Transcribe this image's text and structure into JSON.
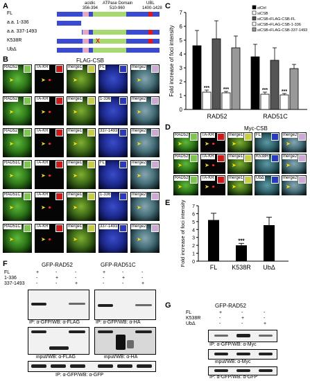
{
  "panels": {
    "A": "A",
    "B": "B",
    "C": "C",
    "D": "D",
    "E": "E",
    "F": "F",
    "G": "G"
  },
  "panel_a": {
    "header_acidic": "acidic",
    "header_acidic_range": "356-394",
    "header_atpase": "ATPase Domain",
    "header_atpase_range": "510-960",
    "header_ubl": "UBL",
    "header_ubl_range": "1400-1428",
    "constructs": [
      "FL",
      "a.a. 1-336",
      "a.a. 337-1493",
      "K538R",
      "UbΔ"
    ],
    "mutation_mark": "X",
    "colors": {
      "backbone": "#3a4bd0",
      "acidic": "#e8a8c0",
      "atpase": "#a8d870",
      "ubl": "#e01818"
    }
  },
  "panel_b": {
    "header": "FLAG-CSB",
    "rows": [
      {
        "c1": "RAD52",
        "c2": "TA-KR",
        "c3": "merge1",
        "c4": "FL",
        "c5": "merge2"
      },
      {
        "c1": "RAD52",
        "c2": "TA-KR",
        "c3": "merge1",
        "c4": "1-336",
        "c5": "merge2"
      },
      {
        "c1": "RAD52",
        "c2": "TA-KR",
        "c3": "merge1",
        "c4": "337-1493",
        "c5": "merge2"
      },
      {
        "c1": "RAD51C",
        "c2": "TA-KR",
        "c3": "merge1",
        "c4": "FL",
        "c5": "merge2"
      },
      {
        "c1": "RAD51C",
        "c2": "TA-KR",
        "c3": "merge1",
        "c4": "1-336",
        "c5": "merge2"
      },
      {
        "c1": "RAD51C",
        "c2": "TA-KR",
        "c3": "merge1",
        "c4": "337-1493",
        "c5": "merge2"
      }
    ]
  },
  "panel_d": {
    "header": "Myc-CSB",
    "rows": [
      {
        "c1": "RAD52",
        "c2": "TA-KR",
        "c3": "merge1",
        "c4": "FL",
        "c5": "merge2"
      },
      {
        "c1": "RAD52",
        "c2": "TA-KR",
        "c3": "merge1",
        "c4": "K538R",
        "c5": "merge2"
      },
      {
        "c1": "RAD52",
        "c2": "TA-KR",
        "c3": "merge1",
        "c4": "UbΔ",
        "c5": "merge2"
      }
    ]
  },
  "chart_data": [
    {
      "panel": "C",
      "type": "bar",
      "ylabel": "Fold increase of foci intensity",
      "ylim": [
        0,
        7
      ],
      "yticks": [
        0,
        1,
        2,
        3,
        4,
        5,
        6,
        7
      ],
      "categories": [
        "RAD52",
        "RAD51C"
      ],
      "legend_position": "top-right",
      "significance": "***",
      "series": [
        {
          "name": "siCtrl",
          "values": [
            4.6,
            3.8
          ],
          "errors": [
            1.1,
            0.9
          ],
          "color": "#000000"
        },
        {
          "name": "siCSB",
          "values": [
            1.25,
            1.1
          ],
          "errors": [
            0.15,
            0.15
          ],
          "color": "#ffffff"
        },
        {
          "name": "siCSB+FLAG-CSB-FL",
          "values": [
            5.1,
            3.55
          ],
          "errors": [
            1.3,
            0.9
          ],
          "color": "#555555"
        },
        {
          "name": "siCSB+FLAG-CSB-1-336",
          "values": [
            1.2,
            1.05
          ],
          "errors": [
            0.1,
            0.1
          ],
          "color": "#ffffff"
        },
        {
          "name": "siCSB+FLAG-CSB-337-1493",
          "values": [
            4.45,
            2.95
          ],
          "errors": [
            0.85,
            0.3
          ],
          "color": "#999999"
        }
      ],
      "significant_bars": [
        [
          1,
          0
        ],
        [
          3,
          0
        ],
        [
          1,
          1
        ],
        [
          3,
          1
        ]
      ]
    },
    {
      "panel": "E",
      "type": "bar",
      "ylabel": "Fold increase of foci intensity",
      "ylim": [
        0,
        7
      ],
      "yticks": [
        0,
        1,
        2,
        3,
        4,
        5,
        6,
        7
      ],
      "categories": [
        "FL",
        "K538R",
        "UbΔ"
      ],
      "values": [
        5.2,
        2.0,
        4.55
      ],
      "errors": [
        0.85,
        0.25,
        1.0
      ],
      "color": "#000000",
      "significance": "***",
      "significant_index": 1
    }
  ],
  "panel_f": {
    "left_title": "GFP-RAD52",
    "right_title": "GFP-RAD51C",
    "row_labels": [
      "FL",
      "1-336",
      "337-1493"
    ],
    "left_lanes": [
      [
        "+",
        "-",
        "-"
      ],
      [
        "-",
        "+",
        "-"
      ],
      [
        "-",
        "-",
        "+"
      ]
    ],
    "right_lanes": [
      [
        "+",
        "-",
        "-"
      ],
      [
        "-",
        "+",
        "-"
      ],
      [
        "-",
        "-",
        "+"
      ]
    ],
    "left_ip": "IP: α-GFP/WB: α-FLAG",
    "right_ip": "IP: α-GFP/WB: α-HA",
    "left_input": "input/WB: α-FLAG",
    "right_input": "input/WB: α-HA",
    "bottom": "IP: α-GFP/WB: α-GFP"
  },
  "panel_g": {
    "title": "GFP-RAD52",
    "row_labels": [
      "FL",
      "K538R",
      "UbΔ"
    ],
    "lanes": [
      [
        "+",
        "-",
        "-"
      ],
      [
        "-",
        "+",
        "-"
      ],
      [
        "-",
        "-",
        "+"
      ]
    ],
    "ip": "IP: α-GFP/WB: α-Myc",
    "input": "input/WB: α-Myc",
    "bottom": "IP: α-GFP/WB: α-GFP"
  }
}
